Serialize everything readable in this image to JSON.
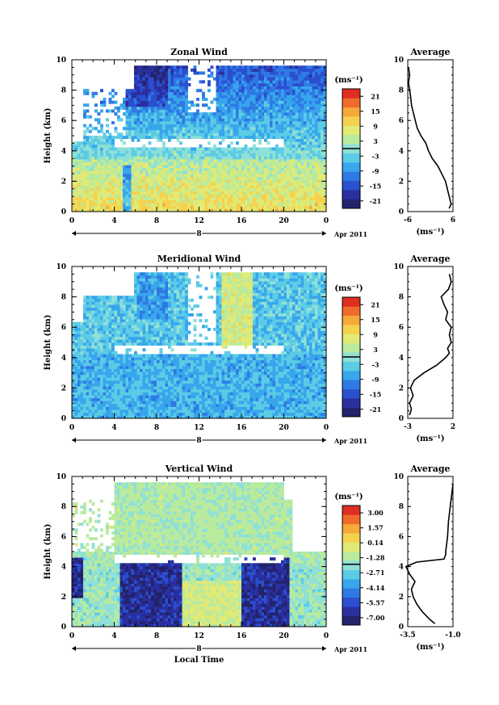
{
  "chart_data": [
    {
      "type": "heatmap",
      "title": "Zonal Wind",
      "ylabel": "Height (km)",
      "xlabel": "",
      "xticks": [
        "0",
        "4",
        "8",
        "12",
        "16",
        "20",
        "0"
      ],
      "yticks": [
        "0",
        "2",
        "4",
        "6",
        "8",
        "10"
      ],
      "xlim": [
        0,
        24
      ],
      "ylim": [
        0,
        10
      ],
      "date_day": "8",
      "date_label": "Apr 2011",
      "colorbar": {
        "unit": "(ms⁻¹)",
        "ticks": [
          "21",
          "15",
          "9",
          "3",
          "-3",
          "-9",
          "-15",
          "-21"
        ],
        "min": -24,
        "max": 24
      },
      "average": {
        "title": "Average",
        "xlabel": "(ms⁻¹)",
        "xticks": [
          "-6",
          "6"
        ],
        "yticks": [
          "0",
          "2",
          "4",
          "6",
          "8",
          "10"
        ],
        "xlim": [
          -6,
          6
        ],
        "heights": [
          0.2,
          0.5,
          1.0,
          1.5,
          2.0,
          2.5,
          3.0,
          3.5,
          4.0,
          4.5,
          5.0,
          5.5,
          6.0,
          6.5,
          7.0,
          7.5,
          8.0,
          8.5,
          9.0,
          9.5
        ],
        "values": [
          5.0,
          5.5,
          5.0,
          4.5,
          4.0,
          3.0,
          2.0,
          0.5,
          -0.5,
          -1.2,
          -2.5,
          -3.5,
          -4.0,
          -4.5,
          -5.0,
          -5.2,
          -5.5,
          -5.8,
          -5.5,
          -5.8
        ]
      }
    },
    {
      "type": "heatmap",
      "title": "Meridional Wind",
      "ylabel": "Height (km)",
      "xlabel": "",
      "xticks": [
        "0",
        "4",
        "8",
        "12",
        "16",
        "20",
        "0"
      ],
      "yticks": [
        "0",
        "2",
        "4",
        "6",
        "8",
        "10"
      ],
      "xlim": [
        0,
        24
      ],
      "ylim": [
        0,
        10
      ],
      "date_day": "8",
      "date_label": "Apr 2011",
      "colorbar": {
        "unit": "(ms⁻¹)",
        "ticks": [
          "21",
          "15",
          "9",
          "3",
          "-3",
          "-9",
          "-15",
          "-21"
        ],
        "min": -24,
        "max": 24
      },
      "average": {
        "title": "Average",
        "xlabel": "(ms⁻¹)",
        "xticks": [
          "-3",
          "2"
        ],
        "yticks": [
          "0",
          "2",
          "4",
          "6",
          "8",
          "10"
        ],
        "xlim": [
          -3,
          2
        ],
        "heights": [
          0.2,
          0.6,
          1.0,
          1.5,
          2.0,
          2.5,
          3.0,
          3.5,
          4.0,
          4.3,
          4.6,
          5.0,
          5.5,
          6.0,
          6.5,
          7.0,
          7.5,
          8.0,
          8.5,
          9.0,
          9.5
        ],
        "values": [
          -2.8,
          -2.6,
          -2.8,
          -2.4,
          -2.7,
          -2.3,
          -1.2,
          0.2,
          1.2,
          1.6,
          1.4,
          1.8,
          1.6,
          1.8,
          1.2,
          1.4,
          1.0,
          0.7,
          1.5,
          1.8,
          1.6
        ]
      }
    },
    {
      "type": "heatmap",
      "title": "Vertical Wind",
      "ylabel": "Height (km)",
      "xlabel": "Local Time",
      "xticks": [
        "0",
        "4",
        "8",
        "12",
        "16",
        "20",
        "0"
      ],
      "yticks": [
        "0",
        "2",
        "4",
        "6",
        "8",
        "10"
      ],
      "xlim": [
        0,
        24
      ],
      "ylim": [
        0,
        10
      ],
      "date_day": "8",
      "date_label": "Apr 2011",
      "colorbar": {
        "unit": "(ms⁻¹)",
        "ticks": [
          "3.00",
          "1.57",
          "0.14",
          "-1.28",
          "-2.71",
          "-4.14",
          "-5.57",
          "-7.00"
        ],
        "min": -7.7,
        "max": 3.7
      },
      "average": {
        "title": "Average",
        "xlabel": "(ms⁻¹)",
        "xticks": [
          "-3.5",
          "-1.0"
        ],
        "yticks": [
          "0",
          "2",
          "4",
          "6",
          "8",
          "10"
        ],
        "xlim": [
          -3.5,
          -1.0
        ],
        "heights": [
          0.2,
          0.5,
          1.0,
          1.5,
          2.0,
          2.5,
          3.0,
          3.5,
          4.0,
          4.3,
          4.5,
          4.8,
          5.0,
          6.0,
          7.0,
          8.0,
          9.0,
          9.5
        ],
        "values": [
          -2.0,
          -2.3,
          -2.7,
          -3.0,
          -3.2,
          -3.3,
          -3.1,
          -3.4,
          -3.6,
          -3.0,
          -1.5,
          -1.4,
          -1.4,
          -1.3,
          -1.25,
          -1.15,
          -1.05,
          -1.0
        ]
      }
    }
  ]
}
